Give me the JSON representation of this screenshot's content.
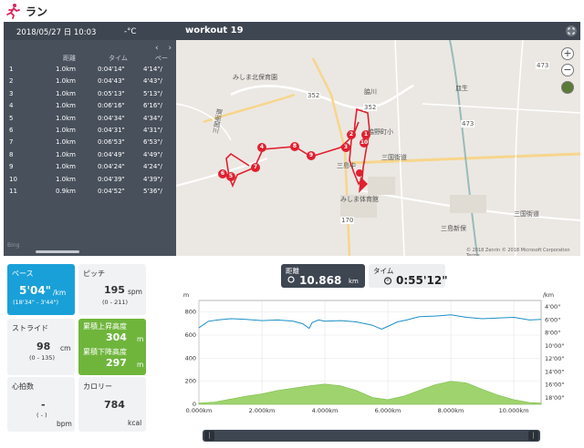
{
  "app": {
    "title": "ラン"
  },
  "header": {
    "datetime": "2018/05/27 日 10:03",
    "temperature": "-°C",
    "workout_name": "workout 19"
  },
  "laps": {
    "columns": [
      "",
      "距離",
      "タイム",
      "ペー"
    ],
    "rows": [
      {
        "n": "1",
        "dist": "1.0km",
        "time": "0:04'14\"",
        "pace": "4'14\"/"
      },
      {
        "n": "2",
        "dist": "1.0km",
        "time": "0:04'43\"",
        "pace": "4'43\"/"
      },
      {
        "n": "3",
        "dist": "1.0km",
        "time": "0:05'13\"",
        "pace": "5'13\"/"
      },
      {
        "n": "4",
        "dist": "1.0km",
        "time": "0:06'16\"",
        "pace": "6'16\"/"
      },
      {
        "n": "5",
        "dist": "1.0km",
        "time": "0:04'34\"",
        "pace": "4'34\"/"
      },
      {
        "n": "6",
        "dist": "1.0km",
        "time": "0:04'31\"",
        "pace": "4'31\"/"
      },
      {
        "n": "7",
        "dist": "1.0km",
        "time": "0:06'53\"",
        "pace": "6'53\"/"
      },
      {
        "n": "8",
        "dist": "1.0km",
        "time": "0:04'49\"",
        "pace": "4'49\"/"
      },
      {
        "n": "9",
        "dist": "1.0km",
        "time": "0:04'24\"",
        "pace": "4'24\"/"
      },
      {
        "n": "10",
        "dist": "1.0km",
        "time": "0:04'39\"",
        "pace": "4'39\"/"
      },
      {
        "n": "11",
        "dist": "0.9km",
        "time": "0:04'52\"",
        "pace": "5'36\"/"
      }
    ],
    "bing_label": "Bing"
  },
  "map": {
    "labels": [
      "みしま北保育園",
      "三国街道",
      "三国街道",
      "脇野町小",
      "三島中",
      "みしま体育館",
      "三国街道",
      "三島新保",
      "皿生",
      "脇川"
    ],
    "road_numbers": [
      "352",
      "352",
      "473",
      "473",
      "170"
    ],
    "copyright": "© 2018 Zenrin © 2018 Microsoft Corporation Terms",
    "markers": [
      "1",
      "2",
      "3",
      "4",
      "5",
      "6",
      "7",
      "8",
      "9",
      "10"
    ]
  },
  "stats": {
    "pace": {
      "label": "ペース",
      "value": "5'04\"",
      "unit": "/km",
      "range": "(18'34\" - 3'44\")"
    },
    "cadence": {
      "label": "ピッチ",
      "value": "195",
      "unit": "spm",
      "range": "(0 - 211)"
    },
    "stride": {
      "label": "ストライド",
      "value": "98",
      "unit": "cm",
      "range": "(0 - 135)"
    },
    "ascent": {
      "label": "累積上昇高度",
      "value": "304",
      "unit": "m"
    },
    "descent": {
      "label": "累積下降高度",
      "value": "297",
      "unit": "m"
    },
    "heart": {
      "label": "心拍数",
      "value": "-",
      "unit": "bpm",
      "range": "( - )"
    },
    "calories": {
      "label": "カロリー",
      "value": "784",
      "unit": "kcal"
    }
  },
  "totals": {
    "distance": {
      "label": "距離",
      "value": "10.868",
      "unit": "km"
    },
    "time": {
      "label": "タイム",
      "value": "0:55'12\""
    }
  },
  "chart_data": {
    "type": "line",
    "title": "",
    "xlabel": "",
    "ylabel_left": "m",
    "ylabel_right": "/km",
    "x_ticks": [
      "0.000km",
      "2.000km",
      "4.000km",
      "6.000km",
      "8.000km",
      "10.000km"
    ],
    "xlim": [
      0,
      10.868
    ],
    "y_left_ticks": [
      "800",
      "600",
      "400",
      "200",
      "0"
    ],
    "ylim_left": [
      0,
      900
    ],
    "y_right_ticks": [
      "4'00\"",
      "6'00\"",
      "8'00\"",
      "10'00\"",
      "12'00\"",
      "14'00\"",
      "16'00\"",
      "18'00\""
    ],
    "ylim_right_minutes": [
      3,
      19
    ],
    "series": [
      {
        "name": "pace",
        "color": "#1a8fc8",
        "unit": "min/km",
        "x": [
          0,
          0.3,
          0.6,
          1.0,
          1.5,
          2.0,
          2.5,
          3.0,
          3.3,
          3.5,
          3.6,
          3.8,
          4.0,
          4.5,
          5.0,
          5.5,
          5.8,
          6.0,
          6.3,
          6.6,
          7.0,
          7.5,
          8.0,
          8.5,
          9.0,
          9.5,
          10.0,
          10.5,
          10.868
        ],
        "values": [
          7.2,
          6.2,
          6.0,
          5.8,
          5.9,
          6.1,
          6.0,
          6.2,
          6.6,
          7.3,
          6.4,
          6.0,
          6.2,
          6.1,
          6.3,
          6.8,
          7.4,
          7.0,
          6.3,
          6.0,
          5.5,
          5.4,
          5.2,
          5.6,
          5.8,
          5.7,
          5.6,
          6.0,
          5.9
        ]
      },
      {
        "name": "elevation",
        "color": "#9fd36e",
        "unit": "m",
        "x": [
          0,
          0.5,
          1.0,
          1.5,
          2.0,
          2.5,
          3.0,
          3.5,
          4.0,
          4.5,
          5.0,
          5.5,
          6.0,
          6.5,
          7.0,
          7.5,
          8.0,
          8.5,
          9.0,
          9.5,
          10.0,
          10.5,
          10.868
        ],
        "values": [
          10,
          20,
          45,
          70,
          90,
          120,
          140,
          160,
          175,
          160,
          120,
          60,
          40,
          70,
          120,
          170,
          200,
          185,
          130,
          80,
          40,
          15,
          10
        ]
      }
    ]
  },
  "colors": {
    "accent_blue": "#1aa0d8",
    "accent_green": "#6fb53c",
    "header": "#3e4651",
    "route": "#e0202f"
  }
}
